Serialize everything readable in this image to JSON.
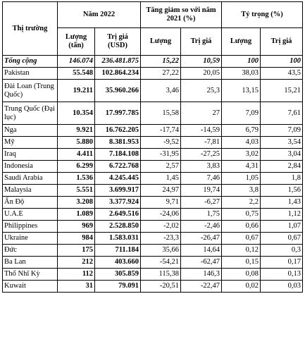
{
  "headers": {
    "market": "Thị trường",
    "year": "Năm 2022",
    "change": "Tăng giảm so với năm 2021 (%)",
    "share": "Tỷ trọng (%)",
    "qty": "Lượng (tấn)",
    "value": "Trị giá (USD)",
    "qty2": "Lượng",
    "value2": "Trị giá",
    "qty3": "Lượng",
    "value3": "Trị giá"
  },
  "rows": [
    {
      "name": "Tổng cộng",
      "qty": "146.074",
      "value": "236.481.875",
      "chg_qty": "15,22",
      "chg_val": "10,59",
      "sh_qty": "100",
      "sh_val": "100"
    },
    {
      "name": "Pakistan",
      "qty": "55.548",
      "value": "102.864.234",
      "chg_qty": "27,22",
      "chg_val": "20,05",
      "sh_qty": "38,03",
      "sh_val": "43,5"
    },
    {
      "name": "Đài Loan (Trung Quốc)",
      "qty": "19.211",
      "value": "35.960.266",
      "chg_qty": "3,46",
      "chg_val": "25,3",
      "sh_qty": "13,15",
      "sh_val": "15,21"
    },
    {
      "name": "Trung Quốc (Đại lục)",
      "qty": "10.354",
      "value": "17.997.785",
      "chg_qty": "15,58",
      "chg_val": "27",
      "sh_qty": "7,09",
      "sh_val": "7,61"
    },
    {
      "name": "Nga",
      "qty": "9.921",
      "value": "16.762.205",
      "chg_qty": "-17,74",
      "chg_val": "-14,59",
      "sh_qty": "6,79",
      "sh_val": "7,09"
    },
    {
      "name": "Mỹ",
      "qty": "5.880",
      "value": "8.381.953",
      "chg_qty": "-9,52",
      "chg_val": "-7,81",
      "sh_qty": "4,03",
      "sh_val": "3,54"
    },
    {
      "name": "Iraq",
      "qty": "4.411",
      "value": "7.184.108",
      "chg_qty": "-31,95",
      "chg_val": "-27,25",
      "sh_qty": "3,02",
      "sh_val": "3,04"
    },
    {
      "name": "Indonesia",
      "qty": "6.299",
      "value": "6.722.768",
      "chg_qty": "2,57",
      "chg_val": "3,83",
      "sh_qty": "4,31",
      "sh_val": "2,84"
    },
    {
      "name": "Saudi Arabia",
      "qty": "1.536",
      "value": "4.245.445",
      "chg_qty": "1,45",
      "chg_val": "7,46",
      "sh_qty": "1,05",
      "sh_val": "1,8"
    },
    {
      "name": "Malaysia",
      "qty": "5.551",
      "value": "3.699.917",
      "chg_qty": "24,97",
      "chg_val": "19,74",
      "sh_qty": "3,8",
      "sh_val": "1,56"
    },
    {
      "name": "Ấn Độ",
      "qty": "3.208",
      "value": "3.377.924",
      "chg_qty": "9,71",
      "chg_val": "-6,27",
      "sh_qty": "2,2",
      "sh_val": "1,43"
    },
    {
      "name": "U.A.E",
      "qty": "1.089",
      "value": "2.649.516",
      "chg_qty": "-24,06",
      "chg_val": "1,75",
      "sh_qty": "0,75",
      "sh_val": "1,12"
    },
    {
      "name": "Philippines",
      "qty": "969",
      "value": "2.528.850",
      "chg_qty": "-2,02",
      "chg_val": "-2,46",
      "sh_qty": "0,66",
      "sh_val": "1,07"
    },
    {
      "name": "Ukraine",
      "qty": "984",
      "value": "1.583.031",
      "chg_qty": "-23,3",
      "chg_val": "-26,47",
      "sh_qty": "0,67",
      "sh_val": "0,67"
    },
    {
      "name": "Đức",
      "qty": "175",
      "value": "711.184",
      "chg_qty": "35,66",
      "chg_val": "14,64",
      "sh_qty": "0,12",
      "sh_val": "0,3"
    },
    {
      "name": "Ba Lan",
      "qty": "212",
      "value": "403.660",
      "chg_qty": "-54,21",
      "chg_val": "-62,47",
      "sh_qty": "0,15",
      "sh_val": "0,17"
    },
    {
      "name": "Thổ Nhĩ Kỳ",
      "qty": "112",
      "value": "305.859",
      "chg_qty": "115,38",
      "chg_val": "146,3",
      "sh_qty": "0,08",
      "sh_val": "0,13"
    },
    {
      "name": "Kuwait",
      "qty": "31",
      "value": "79.091",
      "chg_qty": "-20,51",
      "chg_val": "-22,47",
      "sh_qty": "0,02",
      "sh_val": "0,03"
    }
  ]
}
